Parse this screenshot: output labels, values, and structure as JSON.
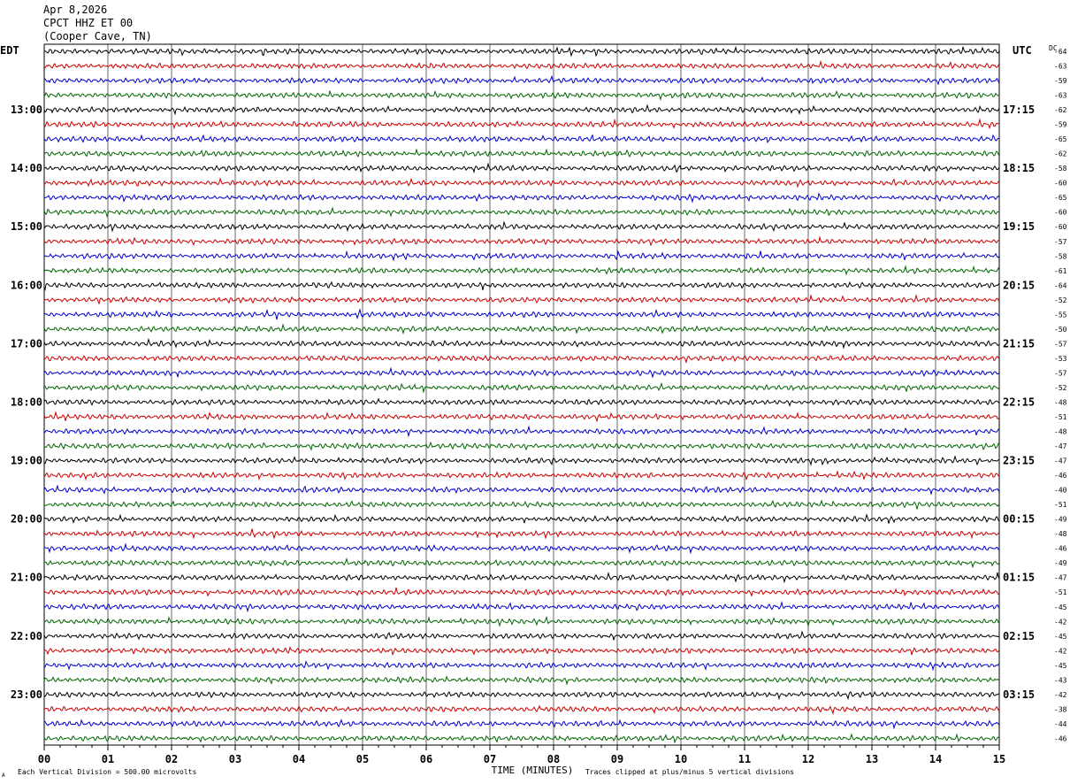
{
  "header": {
    "date": "Apr 8,2026",
    "station": "CPCT HHZ ET 00",
    "location": "(Cooper Cave, TN)"
  },
  "chart_data": {
    "type": "line",
    "left_axis_label": "EDT",
    "right_axis_label": "UTC",
    "dc_label": "DC",
    "xlabel": "TIME (MINUTES)",
    "x_ticks": [
      "00",
      "01",
      "02",
      "03",
      "04",
      "05",
      "06",
      "07",
      "08",
      "09",
      "10",
      "11",
      "12",
      "13",
      "14",
      "15"
    ],
    "xlim": [
      0,
      15
    ],
    "left_hour_labels": [
      "13:00",
      "14:00",
      "15:00",
      "16:00",
      "17:00",
      "18:00",
      "19:00",
      "20:00",
      "21:00",
      "22:00",
      "23:00"
    ],
    "right_hour_labels": [
      "17:15",
      "18:15",
      "19:15",
      "20:15",
      "21:15",
      "22:15",
      "23:15",
      "00:15",
      "01:15",
      "02:15",
      "03:15"
    ],
    "dc_offsets": [
      -64,
      -63,
      -59,
      -63,
      -62,
      -59,
      -65,
      -62,
      -58,
      -60,
      -65,
      -60,
      -60,
      -57,
      -58,
      -61,
      -64,
      -52,
      -55,
      -50,
      -57,
      -53,
      -57,
      -52,
      -48,
      -51,
      -48,
      -47,
      -47,
      -46,
      -40,
      -51,
      -49,
      -48,
      -46,
      -49,
      -47,
      -51,
      -45,
      -42,
      -45,
      -42,
      -45,
      -43,
      -42,
      -38,
      -44,
      -46
    ],
    "trace_colors": [
      "#000000",
      "#cc0000",
      "#0000cc",
      "#006600"
    ],
    "footer_left": "Each Vertical Division =  500.00 microvolts",
    "footer_right": "Traces clipped at plus/minus 5 vertical divisions",
    "corner_mark": "A"
  }
}
